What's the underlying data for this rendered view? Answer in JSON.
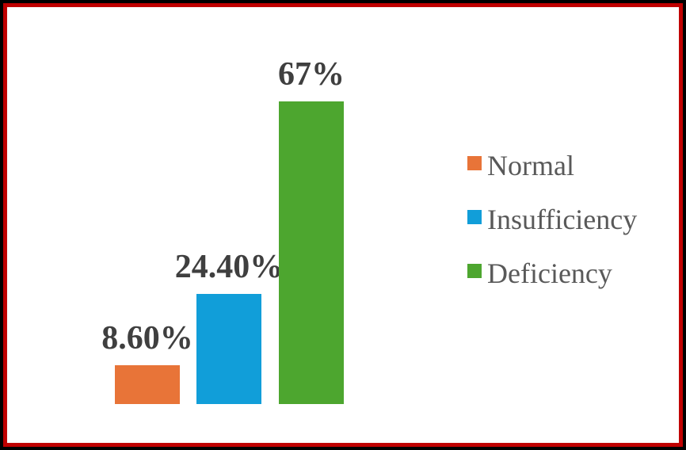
{
  "frame": {
    "outer_border_color": "#000000",
    "inner_border_color": "#C00000",
    "background": "#FFFFFF"
  },
  "chart_data": {
    "type": "bar",
    "title": "",
    "categories": [
      "Normal",
      "Insufficiency",
      "Deficiency"
    ],
    "values": [
      8.6,
      24.4,
      67
    ],
    "display_labels": [
      "8.60%",
      "24.40%",
      "67%"
    ],
    "colors": [
      "#E87438",
      "#119ED9",
      "#4DA62F"
    ],
    "label_color": "#3F3F3F",
    "axes_visible": false,
    "grid": false,
    "legend_position": "right"
  },
  "legend": {
    "text_color": "#595959",
    "items": [
      {
        "label": "Normal",
        "color": "#E87438"
      },
      {
        "label": "Insufficiency",
        "color": "#119ED9"
      },
      {
        "label": "Deficiency",
        "color": "#4DA62F"
      }
    ]
  }
}
